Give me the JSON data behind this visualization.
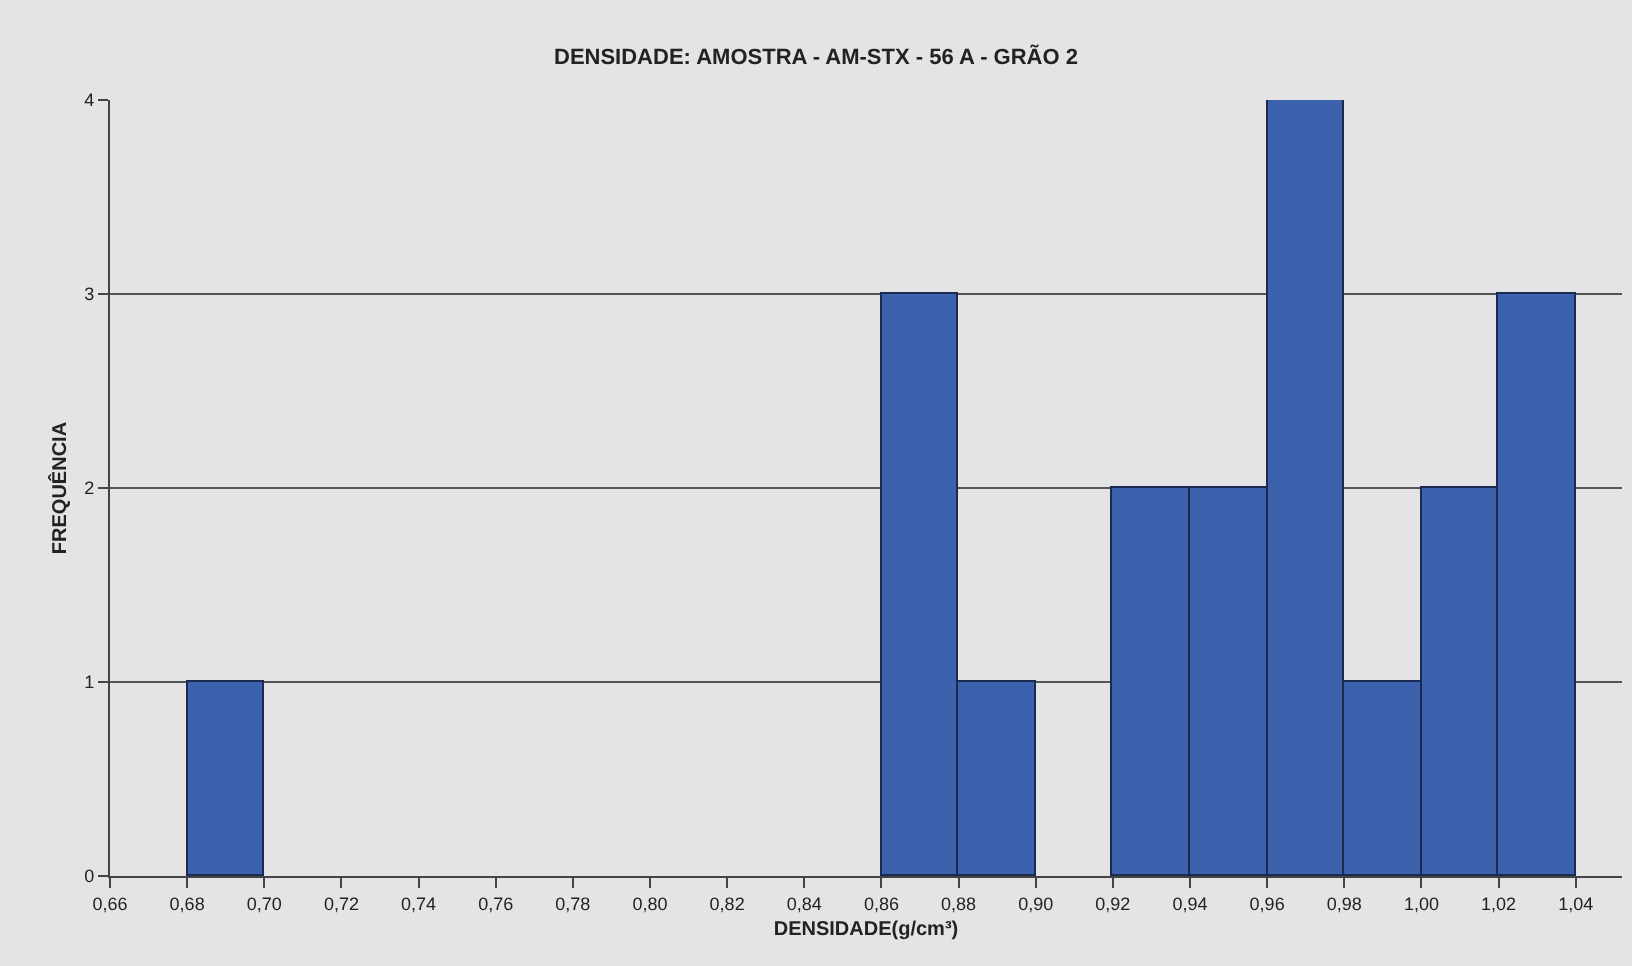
{
  "chart_data": {
    "type": "histogram",
    "title": "DENSIDADE: AMOSTRA - AM-STX - 56 A - GRÃO 2",
    "xlabel": "DENSIDADE(g/cm³)",
    "ylabel": "FREQUÊNCIA",
    "bins": [
      0.66,
      0.68,
      0.7,
      0.72,
      0.74,
      0.76,
      0.78,
      0.8,
      0.82,
      0.84,
      0.86,
      0.88,
      0.9,
      0.92,
      0.94,
      0.96,
      0.98,
      1.0,
      1.02,
      1.04
    ],
    "values": [
      0,
      1,
      0,
      0,
      0,
      0,
      0,
      0,
      0,
      0,
      3,
      1,
      0,
      2,
      2,
      4,
      1,
      2,
      3
    ],
    "color": "#3d62ad",
    "xlim": [
      0.66,
      1.052
    ],
    "xticks": [
      {
        "value": 0.66,
        "label": "0,66"
      },
      {
        "value": 0.68,
        "label": "0,68"
      },
      {
        "value": 0.7,
        "label": "0,70"
      },
      {
        "value": 0.72,
        "label": "0,72"
      },
      {
        "value": 0.74,
        "label": "0,74"
      },
      {
        "value": 0.76,
        "label": "0,76"
      },
      {
        "value": 0.78,
        "label": "0,78"
      },
      {
        "value": 0.8,
        "label": "0,80"
      },
      {
        "value": 0.82,
        "label": "0,82"
      },
      {
        "value": 0.84,
        "label": "0,84"
      },
      {
        "value": 0.86,
        "label": "0,86"
      },
      {
        "value": 0.88,
        "label": "0,88"
      },
      {
        "value": 0.9,
        "label": "0,90"
      },
      {
        "value": 0.92,
        "label": "0,92"
      },
      {
        "value": 0.94,
        "label": "0,94"
      },
      {
        "value": 0.96,
        "label": "0,96"
      },
      {
        "value": 0.98,
        "label": "0,98"
      },
      {
        "value": 1.0,
        "label": "1,00"
      },
      {
        "value": 1.02,
        "label": "1,02"
      },
      {
        "value": 1.04,
        "label": "1,04"
      }
    ],
    "ylim": [
      0,
      4
    ],
    "yticks": [
      0,
      1,
      2,
      3,
      4
    ],
    "grid": "y"
  }
}
